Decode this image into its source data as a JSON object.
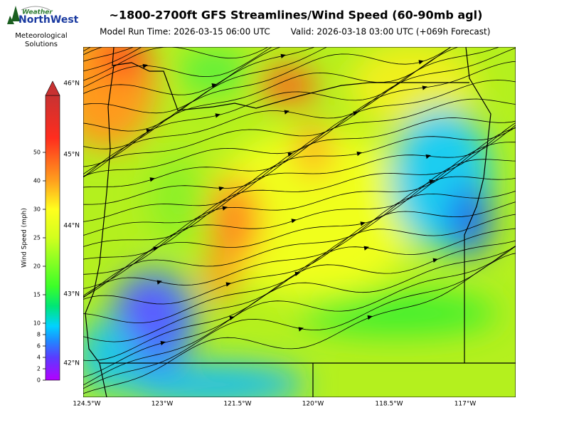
{
  "header": {
    "logo_top": "Weather",
    "logo_brand": "NorthWest",
    "logo_sub1": "Meteorological",
    "logo_sub2": "Solutions",
    "title": "~1800-2700ft GFS Streamlines/Wind Speed (60-90mb agl)",
    "run_time": "Model Run Time: 2026-03-15 06:00 UTC",
    "valid": "Valid: 2026-03-18 03:00 UTC  (+069h Forecast)"
  },
  "colorbar": {
    "label": "Wind Speed (mph)",
    "ticks": [
      0,
      2,
      4,
      6,
      8,
      10,
      15,
      20,
      25,
      30,
      40,
      50
    ]
  },
  "map": {
    "lat_labels": [
      "46°N",
      "45°N",
      "44°N",
      "43°N",
      "42°N"
    ],
    "lon_labels": [
      "124.5°W",
      "123°W",
      "121.5°W",
      "120°W",
      "118.5°W",
      "117°W"
    ]
  }
}
